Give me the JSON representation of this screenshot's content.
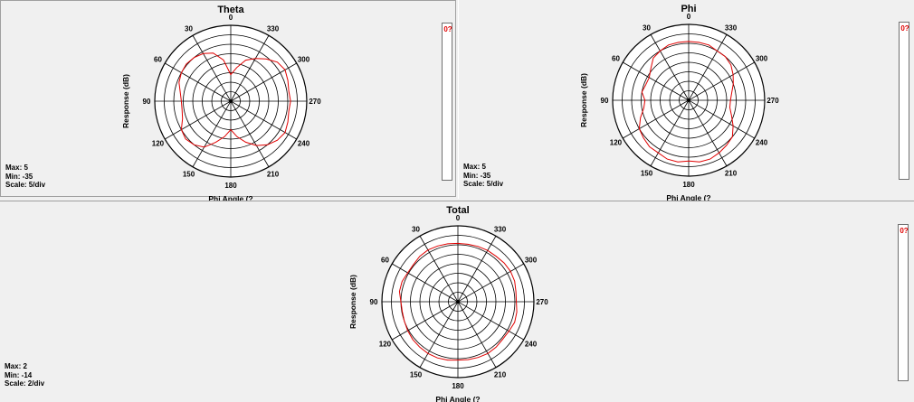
{
  "chart_data": [
    {
      "type": "polar",
      "title": "Theta",
      "xlabel": "Phi Angle  (?",
      "ylabel": "Response (dB)",
      "angle_ticks": [
        "0",
        "30",
        "60",
        "90",
        "120",
        "150",
        "180",
        "210",
        "240",
        "270",
        "300",
        "330"
      ],
      "angle_tick_values": [
        0,
        30,
        60,
        90,
        120,
        150,
        180,
        210,
        240,
        270,
        300,
        330
      ],
      "angle_direction": "counterclockwise",
      "zero_position": "top",
      "r_range": [
        -35,
        5
      ],
      "grid_rings": 8,
      "stats": {
        "max": "Max: 5",
        "min": "Min: -35",
        "scale": "Scale: 5/div"
      },
      "legend": {
        "label": "0?",
        "color": "#e00000"
      },
      "series": [
        {
          "color": "#e00000",
          "angles": [
            0,
            10,
            20,
            30,
            40,
            50,
            60,
            70,
            80,
            90,
            100,
            110,
            120,
            130,
            140,
            150,
            160,
            170,
            180,
            190,
            200,
            210,
            220,
            230,
            240,
            250,
            260,
            270,
            280,
            290,
            300,
            310,
            320,
            330,
            340,
            350
          ],
          "values": [
            -21,
            -13,
            -8,
            -6,
            -5,
            -4.5,
            -5,
            -6,
            -8,
            -9,
            -9,
            -8,
            -5,
            -4,
            -5,
            -7,
            -12,
            -16,
            -20,
            -16,
            -12,
            -8,
            -5,
            -3,
            -2,
            -3,
            -4,
            -3.5,
            -4,
            -3,
            -2,
            -3,
            -6,
            -9,
            -12,
            -17
          ]
        }
      ]
    },
    {
      "type": "polar",
      "title": "Phi",
      "xlabel": "Phi Angle  (?",
      "ylabel": "Response (dB)",
      "angle_ticks": [
        "0",
        "30",
        "60",
        "90",
        "120",
        "150",
        "180",
        "210",
        "240",
        "270",
        "300",
        "330"
      ],
      "angle_tick_values": [
        0,
        30,
        60,
        90,
        120,
        150,
        180,
        210,
        240,
        270,
        300,
        330
      ],
      "angle_direction": "counterclockwise",
      "zero_position": "top",
      "r_range": [
        -35,
        5
      ],
      "grid_rings": 8,
      "stats": {
        "max": "Max: 5",
        "min": "Min: -35",
        "scale": "Scale: 5/div"
      },
      "legend": {
        "label": "0?",
        "color": "#e00000"
      },
      "series": [
        {
          "color": "#e00000",
          "angles": [
            0,
            10,
            20,
            30,
            40,
            50,
            60,
            70,
            80,
            90,
            100,
            110,
            120,
            130,
            140,
            150,
            160,
            170,
            180,
            190,
            200,
            210,
            220,
            230,
            240,
            250,
            260,
            270,
            280,
            290,
            300,
            310,
            320,
            330,
            340,
            350
          ],
          "values": [
            -4,
            -4,
            -4,
            -5,
            -6,
            -9,
            -11,
            -11,
            -10,
            -12,
            -11,
            -8,
            -5,
            -4,
            -3,
            -3,
            -2,
            -2,
            -3,
            -2,
            -2,
            -3,
            -4,
            -5,
            -8,
            -11,
            -13,
            -13,
            -12,
            -10,
            -8,
            -6,
            -5,
            -5,
            -4,
            -4
          ]
        }
      ]
    },
    {
      "type": "polar",
      "title": "Total",
      "xlabel": "Phi Angle  (?",
      "ylabel": "Response (dB)",
      "angle_ticks": [
        "0",
        "30",
        "60",
        "90",
        "120",
        "150",
        "180",
        "210",
        "240",
        "270",
        "300",
        "330"
      ],
      "angle_tick_values": [
        0,
        30,
        60,
        90,
        120,
        150,
        180,
        210,
        240,
        270,
        300,
        330
      ],
      "angle_direction": "counterclockwise",
      "zero_position": "top",
      "r_range": [
        -14,
        2
      ],
      "grid_rings": 8,
      "stats": {
        "max": "Max: 2",
        "min": "Min: -14",
        "scale": "Scale: 2/div"
      },
      "legend": {
        "label": "0?",
        "color": "#e00000"
      },
      "series": [
        {
          "color": "#e00000",
          "angles": [
            0,
            10,
            20,
            30,
            40,
            50,
            60,
            70,
            80,
            90,
            100,
            110,
            120,
            130,
            140,
            150,
            160,
            170,
            180,
            190,
            200,
            210,
            220,
            230,
            240,
            250,
            260,
            270,
            280,
            290,
            300,
            310,
            320,
            330,
            340,
            350
          ],
          "values": [
            -1.7,
            -1.6,
            -1.5,
            -1.4,
            -1.5,
            -1.8,
            -1.8,
            -1.5,
            -1.5,
            -2.0,
            -2.1,
            -2.0,
            -1.8,
            -1.6,
            -1.5,
            -1.4,
            -1.4,
            -1.5,
            -1.7,
            -1.6,
            -1.5,
            -1.4,
            -1.5,
            -1.7,
            -1.6,
            -1.3,
            -1.4,
            -1.7,
            -1.6,
            -1.3,
            -1.2,
            -1.3,
            -1.5,
            -1.5,
            -1.6,
            -1.7
          ]
        }
      ]
    }
  ]
}
